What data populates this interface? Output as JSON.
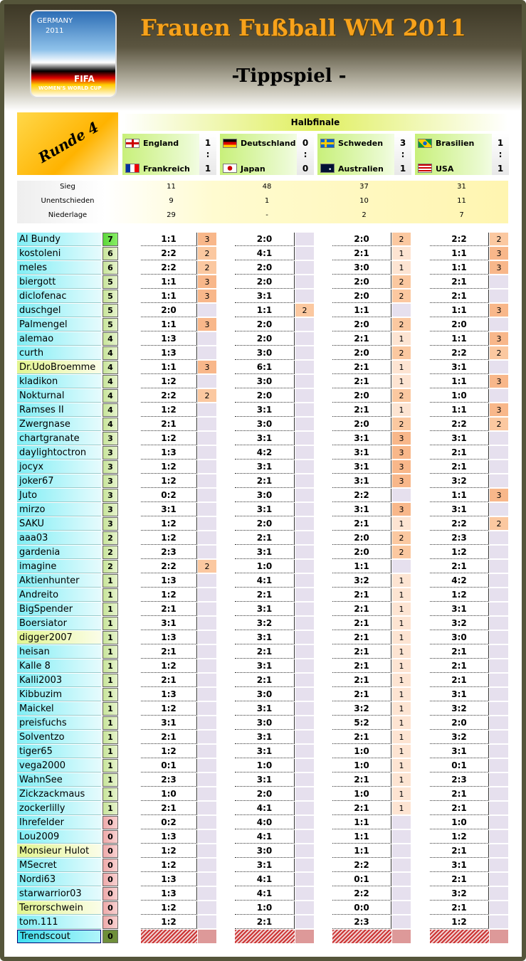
{
  "header": {
    "title": "Frauen Fußball WM 2011",
    "subtitle": "-Tippspiel -",
    "logo": {
      "country": "GERMANY",
      "year": "2011",
      "brand": "FIFA",
      "event": "WOMEN'S WORLD CUP"
    }
  },
  "round": "Runde 4",
  "stage": "Halbfinale",
  "score_separator": ":",
  "matches": [
    {
      "home": "England",
      "away": "Frankreich",
      "home_score": 1,
      "away_score": 1
    },
    {
      "home": "Deutschland",
      "away": "Japan",
      "home_score": 0,
      "away_score": 0
    },
    {
      "home": "Schweden",
      "away": "Australien",
      "home_score": 3,
      "away_score": 1
    },
    {
      "home": "Brasilien",
      "away": "USA",
      "home_score": 1,
      "away_score": 1
    }
  ],
  "stats": [
    {
      "label": "Sieg",
      "values": [
        11,
        48,
        37,
        31
      ]
    },
    {
      "label": "Unentschieden",
      "values": [
        9,
        1,
        10,
        11
      ]
    },
    {
      "label": "Niederlage",
      "values": [
        29,
        "-",
        2,
        7
      ]
    }
  ],
  "players": [
    {
      "name": "Al Bundy",
      "points": 7,
      "tips": [
        "1:1",
        "2:0",
        "2:0",
        "2:2"
      ],
      "tip_points": [
        3,
        null,
        2,
        2
      ]
    },
    {
      "name": "kostoleni",
      "points": 6,
      "tips": [
        "2:2",
        "4:1",
        "2:1",
        "1:1"
      ],
      "tip_points": [
        2,
        null,
        1,
        3
      ]
    },
    {
      "name": "meles",
      "points": 6,
      "tips": [
        "2:2",
        "2:0",
        "3:0",
        "1:1"
      ],
      "tip_points": [
        2,
        null,
        1,
        3
      ]
    },
    {
      "name": "biergott",
      "points": 5,
      "tips": [
        "1:1",
        "2:0",
        "2:0",
        "2:1"
      ],
      "tip_points": [
        3,
        null,
        2,
        null
      ]
    },
    {
      "name": "diclofenac",
      "points": 5,
      "tips": [
        "1:1",
        "3:1",
        "2:0",
        "2:1"
      ],
      "tip_points": [
        3,
        null,
        2,
        null
      ]
    },
    {
      "name": "duschgel",
      "points": 5,
      "tips": [
        "2:0",
        "1:1",
        "1:1",
        "1:1"
      ],
      "tip_points": [
        null,
        2,
        null,
        3
      ]
    },
    {
      "name": "Palmengel",
      "points": 5,
      "tips": [
        "1:1",
        "2:0",
        "2:0",
        "2:0"
      ],
      "tip_points": [
        3,
        null,
        2,
        null
      ]
    },
    {
      "name": "alemao",
      "points": 4,
      "tips": [
        "1:3",
        "2:0",
        "2:1",
        "1:1"
      ],
      "tip_points": [
        null,
        null,
        1,
        3
      ]
    },
    {
      "name": "curth",
      "points": 4,
      "tips": [
        "1:3",
        "3:0",
        "2:0",
        "2:2"
      ],
      "tip_points": [
        null,
        null,
        2,
        2
      ]
    },
    {
      "name": "Dr.UdoBroemme",
      "points": 4,
      "highlight": true,
      "tips": [
        "1:1",
        "6:1",
        "2:1",
        "3:1"
      ],
      "tip_points": [
        3,
        null,
        1,
        null
      ]
    },
    {
      "name": "kladikon",
      "points": 4,
      "tips": [
        "1:2",
        "3:0",
        "2:1",
        "1:1"
      ],
      "tip_points": [
        null,
        null,
        1,
        3
      ]
    },
    {
      "name": "Nokturnal",
      "points": 4,
      "tips": [
        "2:2",
        "2:0",
        "2:0",
        "1:0"
      ],
      "tip_points": [
        2,
        null,
        2,
        null
      ]
    },
    {
      "name": "Ramses II",
      "points": 4,
      "tips": [
        "1:2",
        "3:1",
        "2:1",
        "1:1"
      ],
      "tip_points": [
        null,
        null,
        1,
        3
      ]
    },
    {
      "name": "Zwergnase",
      "points": 4,
      "tips": [
        "2:1",
        "3:0",
        "2:0",
        "2:2"
      ],
      "tip_points": [
        null,
        null,
        2,
        2
      ]
    },
    {
      "name": "chartgranate",
      "points": 3,
      "tips": [
        "1:2",
        "3:1",
        "3:1",
        "3:1"
      ],
      "tip_points": [
        null,
        null,
        3,
        null
      ]
    },
    {
      "name": "daylightoctron",
      "points": 3,
      "tips": [
        "1:3",
        "4:2",
        "3:1",
        "2:1"
      ],
      "tip_points": [
        null,
        null,
        3,
        null
      ]
    },
    {
      "name": "jocyx",
      "points": 3,
      "tips": [
        "1:2",
        "3:1",
        "3:1",
        "2:1"
      ],
      "tip_points": [
        null,
        null,
        3,
        null
      ]
    },
    {
      "name": "joker67",
      "points": 3,
      "tips": [
        "1:2",
        "2:1",
        "3:1",
        "3:2"
      ],
      "tip_points": [
        null,
        null,
        3,
        null
      ]
    },
    {
      "name": "Juto",
      "points": 3,
      "tips": [
        "0:2",
        "3:0",
        "2:2",
        "1:1"
      ],
      "tip_points": [
        null,
        null,
        null,
        3
      ]
    },
    {
      "name": "mirzo",
      "points": 3,
      "tips": [
        "3:1",
        "3:1",
        "3:1",
        "3:1"
      ],
      "tip_points": [
        null,
        null,
        3,
        null
      ]
    },
    {
      "name": "SAKU",
      "points": 3,
      "tips": [
        "1:2",
        "2:0",
        "2:1",
        "2:2"
      ],
      "tip_points": [
        null,
        null,
        1,
        2
      ]
    },
    {
      "name": "aaa03",
      "points": 2,
      "tips": [
        "1:2",
        "2:1",
        "2:0",
        "2:3"
      ],
      "tip_points": [
        null,
        null,
        2,
        null
      ]
    },
    {
      "name": "gardenia",
      "points": 2,
      "tips": [
        "2:3",
        "3:1",
        "2:0",
        "1:2"
      ],
      "tip_points": [
        null,
        null,
        2,
        null
      ]
    },
    {
      "name": "imagine",
      "points": 2,
      "tips": [
        "2:2",
        "1:0",
        "1:1",
        "2:1"
      ],
      "tip_points": [
        2,
        null,
        null,
        null
      ]
    },
    {
      "name": "Aktienhunter",
      "points": 1,
      "tips": [
        "1:3",
        "4:1",
        "3:2",
        "4:2"
      ],
      "tip_points": [
        null,
        null,
        1,
        null
      ]
    },
    {
      "name": "Andreito",
      "points": 1,
      "tips": [
        "1:2",
        "2:1",
        "2:1",
        "1:2"
      ],
      "tip_points": [
        null,
        null,
        1,
        null
      ]
    },
    {
      "name": "BigSpender",
      "points": 1,
      "tips": [
        "2:1",
        "3:1",
        "2:1",
        "3:1"
      ],
      "tip_points": [
        null,
        null,
        1,
        null
      ]
    },
    {
      "name": "Boersiator",
      "points": 1,
      "tips": [
        "3:1",
        "3:2",
        "2:1",
        "3:2"
      ],
      "tip_points": [
        null,
        null,
        1,
        null
      ]
    },
    {
      "name": "digger2007",
      "points": 1,
      "highlight": true,
      "tips": [
        "1:3",
        "3:1",
        "2:1",
        "3:0"
      ],
      "tip_points": [
        null,
        null,
        1,
        null
      ]
    },
    {
      "name": "heisan",
      "points": 1,
      "tips": [
        "2:1",
        "2:1",
        "2:1",
        "2:1"
      ],
      "tip_points": [
        null,
        null,
        1,
        null
      ]
    },
    {
      "name": "Kalle 8",
      "points": 1,
      "tips": [
        "1:2",
        "3:1",
        "2:1",
        "2:1"
      ],
      "tip_points": [
        null,
        null,
        1,
        null
      ]
    },
    {
      "name": "Kalli2003",
      "points": 1,
      "tips": [
        "2:1",
        "2:1",
        "2:1",
        "2:1"
      ],
      "tip_points": [
        null,
        null,
        1,
        null
      ]
    },
    {
      "name": "Kibbuzim",
      "points": 1,
      "tips": [
        "1:3",
        "3:0",
        "2:1",
        "3:1"
      ],
      "tip_points": [
        null,
        null,
        1,
        null
      ]
    },
    {
      "name": "Maickel",
      "points": 1,
      "tips": [
        "1:2",
        "3:1",
        "3:2",
        "3:2"
      ],
      "tip_points": [
        null,
        null,
        1,
        null
      ]
    },
    {
      "name": "preisfuchs",
      "points": 1,
      "tips": [
        "3:1",
        "3:0",
        "5:2",
        "2:0"
      ],
      "tip_points": [
        null,
        null,
        1,
        null
      ]
    },
    {
      "name": "Solventzo",
      "points": 1,
      "tips": [
        "2:1",
        "3:1",
        "2:1",
        "3:2"
      ],
      "tip_points": [
        null,
        null,
        1,
        null
      ]
    },
    {
      "name": "tiger65",
      "points": 1,
      "tips": [
        "1:2",
        "3:1",
        "1:0",
        "3:1"
      ],
      "tip_points": [
        null,
        null,
        1,
        null
      ]
    },
    {
      "name": "vega2000",
      "points": 1,
      "tips": [
        "0:1",
        "1:0",
        "1:0",
        "0:1"
      ],
      "tip_points": [
        null,
        null,
        1,
        null
      ]
    },
    {
      "name": "WahnSee",
      "points": 1,
      "tips": [
        "2:3",
        "3:1",
        "2:1",
        "2:3"
      ],
      "tip_points": [
        null,
        null,
        1,
        null
      ]
    },
    {
      "name": "Zickzackmaus",
      "points": 1,
      "tips": [
        "1:0",
        "2:0",
        "1:0",
        "2:1"
      ],
      "tip_points": [
        null,
        null,
        1,
        null
      ]
    },
    {
      "name": "zockerlilly",
      "points": 1,
      "tips": [
        "2:1",
        "4:1",
        "2:1",
        "2:1"
      ],
      "tip_points": [
        null,
        null,
        1,
        null
      ]
    },
    {
      "name": "Ihrefelder",
      "points": 0,
      "tips": [
        "0:2",
        "4:0",
        "1:1",
        "1:0"
      ]
    },
    {
      "name": "Lou2009",
      "points": 0,
      "tips": [
        "1:3",
        "4:1",
        "1:1",
        "1:2"
      ]
    },
    {
      "name": "Monsieur Hulot",
      "points": 0,
      "highlight": true,
      "tips": [
        "1:2",
        "3:0",
        "1:1",
        "2:1"
      ]
    },
    {
      "name": "MSecret",
      "points": 0,
      "tips": [
        "1:2",
        "3:1",
        "2:2",
        "3:1"
      ]
    },
    {
      "name": "Nordi63",
      "points": 0,
      "tips": [
        "1:3",
        "4:1",
        "0:1",
        "2:1"
      ]
    },
    {
      "name": "starwarrior03",
      "points": 0,
      "tips": [
        "1:3",
        "4:1",
        "2:2",
        "3:2"
      ]
    },
    {
      "name": "Terrorschwein",
      "points": 0,
      "highlight": true,
      "tips": [
        "1:2",
        "1:0",
        "0:0",
        "2:1"
      ]
    },
    {
      "name": "tom.111",
      "points": 0,
      "tips": [
        "1:2",
        "2:1",
        "2:3",
        "1:2"
      ]
    },
    {
      "name": "Trendscout",
      "points": 0
    }
  ]
}
